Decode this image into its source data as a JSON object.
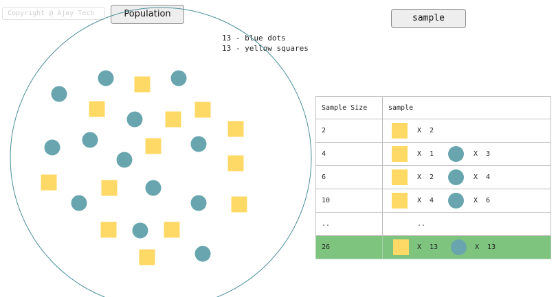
{
  "header": {
    "copyright": "Copyright @ Ajay Tech",
    "population_button": "Population",
    "sample_button": "sample"
  },
  "legend": {
    "blue": "13 - blue dots",
    "yellow": "13 - yellow squares"
  },
  "colors": {
    "dot": "#68a5ae",
    "square": "#ffd966",
    "circle_border": "#4a8d99",
    "highlight_row": "#7ec47e"
  },
  "table": {
    "headers": [
      "Sample Size",
      "sample"
    ],
    "rows": [
      {
        "size": "2",
        "sq_label": "X  2",
        "dot_label": ""
      },
      {
        "size": "4",
        "sq_label": "X  1",
        "dot_label": "X  3"
      },
      {
        "size": "6",
        "sq_label": "X  2",
        "dot_label": "X  4"
      },
      {
        "size": "10",
        "sq_label": "X  4",
        "dot_label": "X  6"
      },
      {
        "size": "..",
        "ellipsis": ".."
      },
      {
        "size": "26",
        "sq_label": "X  13",
        "dot_label": "X  13"
      }
    ]
  }
}
